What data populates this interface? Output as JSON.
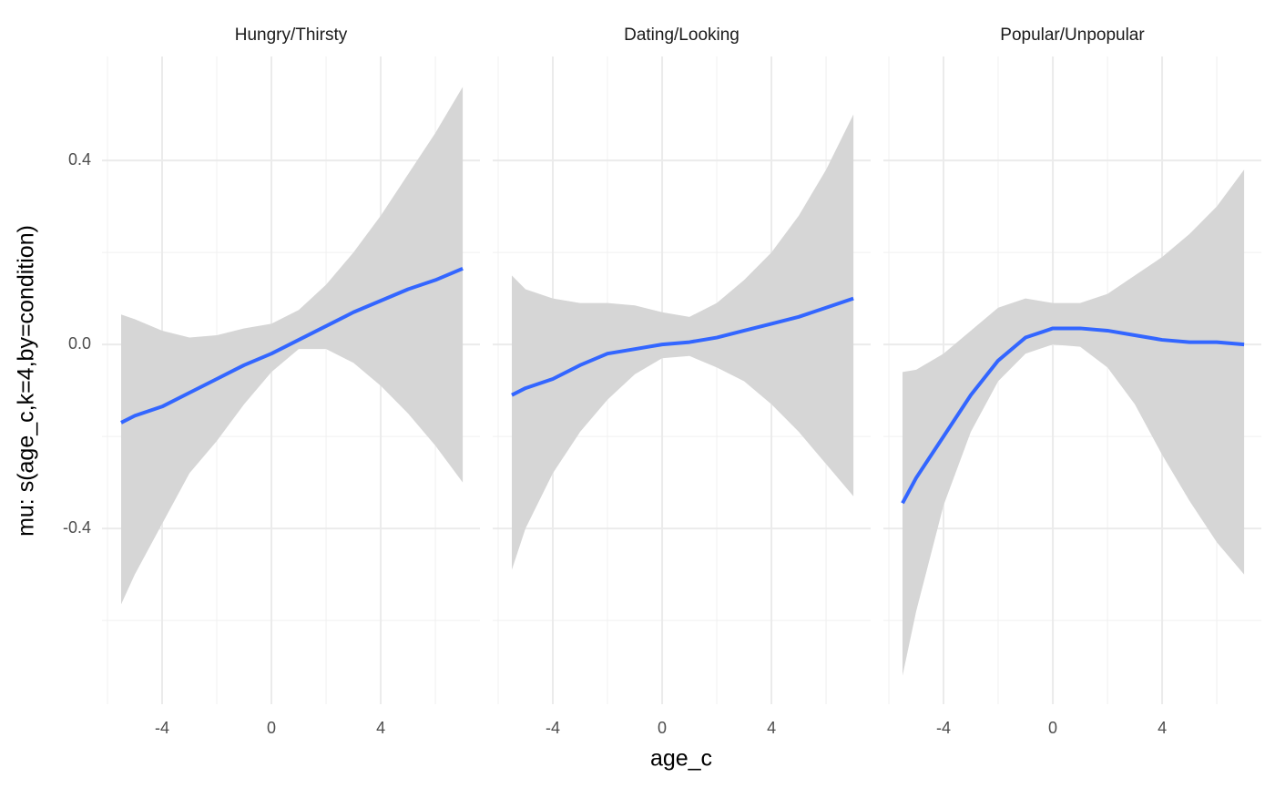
{
  "y_label": "mu: s(age_c,k=4,by=condition)",
  "x_label": "age_c",
  "chart_data": [
    {
      "type": "line",
      "title": "Hungry/Thirsty",
      "color": "#3366ff",
      "band_color": "#d6d6d6",
      "x": [
        -5.5,
        -5,
        -4,
        -3,
        -2,
        -1,
        0,
        1,
        2,
        3,
        4,
        5,
        6,
        7
      ],
      "values": [
        -0.17,
        -0.155,
        -0.135,
        -0.105,
        -0.075,
        -0.045,
        -0.02,
        0.01,
        0.04,
        0.07,
        0.095,
        0.12,
        0.14,
        0.165
      ],
      "upper": [
        0.065,
        0.055,
        0.03,
        0.015,
        0.02,
        0.035,
        0.045,
        0.075,
        0.13,
        0.2,
        0.28,
        0.37,
        0.46,
        0.56
      ],
      "lower": [
        -0.565,
        -0.5,
        -0.39,
        -0.28,
        -0.21,
        -0.13,
        -0.06,
        -0.01,
        -0.01,
        -0.04,
        -0.09,
        -0.15,
        -0.22,
        -0.3
      ],
      "xlim": [
        -6.2,
        7.63
      ],
      "xticks": [
        -4,
        0,
        4
      ],
      "x_minor_ticks": [
        -6,
        -2,
        2,
        6
      ],
      "ylim": [
        -0.782,
        0.626
      ],
      "yticks": [
        {
          "value": -0.4,
          "label": "-0.4"
        },
        {
          "value": 0,
          "label": "0.0"
        },
        0.4
      ],
      "y_minor_ticks": [
        -0.6,
        -0.2,
        0.2
      ],
      "grid": true
    },
    {
      "type": "line",
      "title": "Dating/Looking",
      "color": "#3366ff",
      "band_color": "#d6d6d6",
      "x": [
        -5.5,
        -5,
        -4,
        -3,
        -2,
        -1,
        0,
        1,
        2,
        3,
        4,
        5,
        6,
        7
      ],
      "values": [
        -0.11,
        -0.095,
        -0.075,
        -0.045,
        -0.02,
        -0.01,
        0.0,
        0.005,
        0.015,
        0.03,
        0.045,
        0.06,
        0.08,
        0.1
      ],
      "upper": [
        0.15,
        0.12,
        0.1,
        0.09,
        0.09,
        0.085,
        0.07,
        0.06,
        0.09,
        0.14,
        0.2,
        0.28,
        0.38,
        0.5
      ],
      "lower": [
        -0.49,
        -0.4,
        -0.28,
        -0.19,
        -0.12,
        -0.065,
        -0.03,
        -0.025,
        -0.05,
        -0.08,
        -0.13,
        -0.19,
        -0.26,
        -0.33
      ],
      "xlim": [
        -6.2,
        7.63
      ],
      "xticks": [
        -4,
        0,
        4
      ],
      "x_minor_ticks": [
        -6,
        -2,
        2,
        6
      ],
      "ylim": [
        -0.782,
        0.626
      ],
      "yticks": [
        -0.4,
        0,
        0.4
      ],
      "y_minor_ticks": [
        -0.6,
        -0.2,
        0.2
      ],
      "grid": true
    },
    {
      "type": "line",
      "title": "Popular/Unpopular",
      "color": "#3366ff",
      "band_color": "#d6d6d6",
      "x": [
        -5.5,
        -5,
        -4,
        -3,
        -2,
        -1,
        0,
        1,
        2,
        3,
        4,
        5,
        6,
        7
      ],
      "values": [
        -0.345,
        -0.29,
        -0.2,
        -0.11,
        -0.035,
        0.015,
        0.035,
        0.035,
        0.03,
        0.02,
        0.01,
        0.005,
        0.005,
        0.0
      ],
      "upper": [
        -0.06,
        -0.055,
        -0.02,
        0.03,
        0.08,
        0.1,
        0.09,
        0.09,
        0.11,
        0.15,
        0.19,
        0.24,
        0.3,
        0.38
      ],
      "lower": [
        -0.72,
        -0.58,
        -0.35,
        -0.19,
        -0.08,
        -0.02,
        0.0,
        -0.005,
        -0.05,
        -0.13,
        -0.24,
        -0.34,
        -0.43,
        -0.5
      ],
      "xlim": [
        -6.2,
        7.63
      ],
      "xticks": [
        -4,
        0,
        4
      ],
      "x_minor_ticks": [
        -6,
        -2,
        2,
        6
      ],
      "ylim": [
        -0.782,
        0.626
      ],
      "yticks": [
        -0.4,
        0,
        0.4
      ],
      "y_minor_ticks": [
        -0.6,
        -0.2,
        0.2
      ],
      "grid": true
    }
  ]
}
